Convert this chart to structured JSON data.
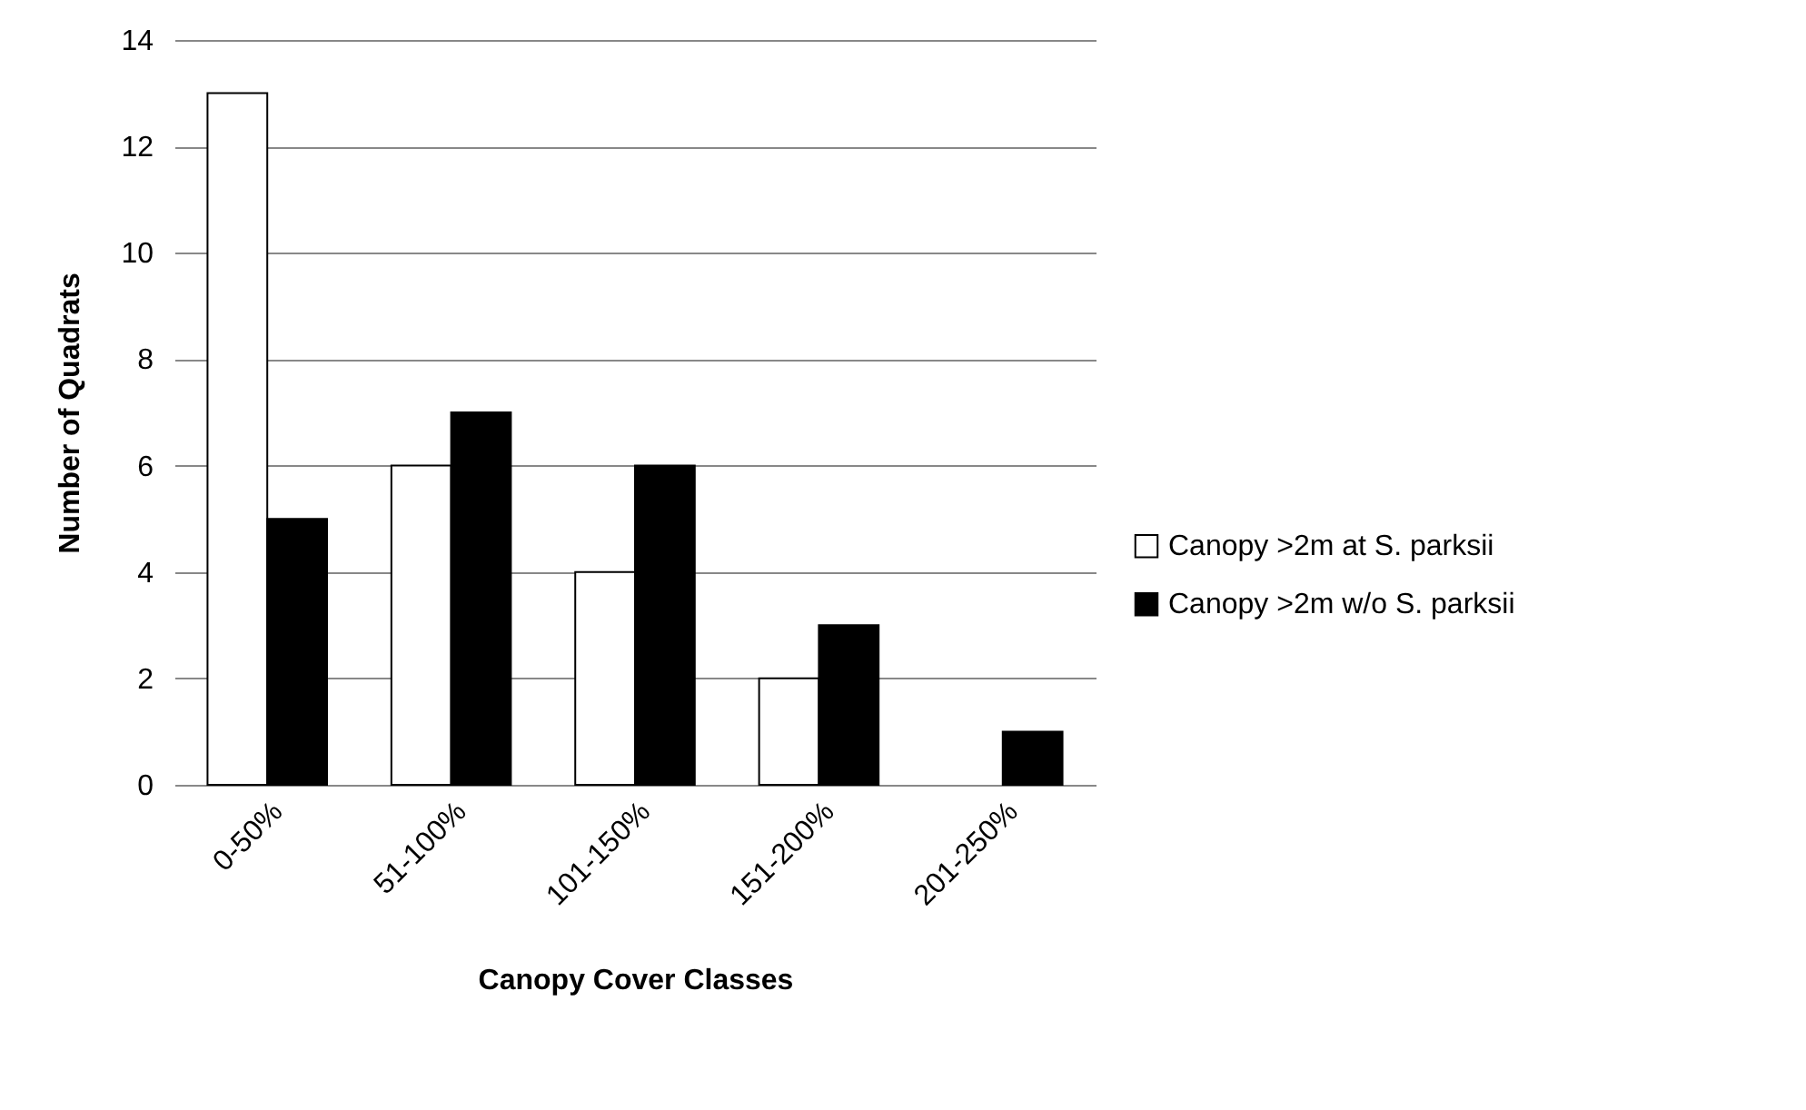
{
  "chart_data": {
    "type": "bar",
    "xlabel": "Canopy Cover Classes",
    "ylabel": "Number of Quadrats",
    "categories": [
      "0-50%",
      "51-100%",
      "101-150%",
      "151-200%",
      "201-250%"
    ],
    "series": [
      {
        "name": "Canopy >2m at S. parksii",
        "color": "#ffffff",
        "values": [
          13,
          6,
          4,
          2,
          0
        ]
      },
      {
        "name": "Canopy >2m w/o S. parksii",
        "color": "#000000",
        "values": [
          5,
          7,
          6,
          3,
          1
        ]
      }
    ],
    "ylim": [
      0,
      14
    ],
    "yticks": [
      0,
      2,
      4,
      6,
      8,
      10,
      12,
      14
    ],
    "grid": "y",
    "legend": "right"
  }
}
